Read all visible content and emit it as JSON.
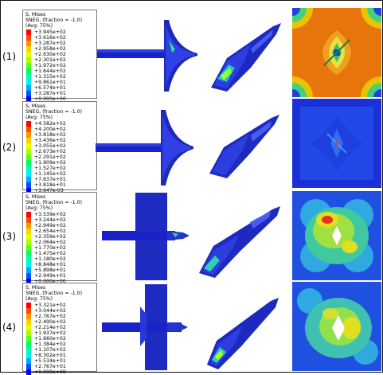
{
  "legend_header": [
    "S, Mises",
    "SNEG, (fraction = -1.0)",
    "(Avg: 75%)"
  ],
  "legend_colors": [
    "#ff0000",
    "#ff4a00",
    "#ff9400",
    "#ffd200",
    "#e6ff00",
    "#a8ff00",
    "#55ff1a",
    "#00ff5e",
    "#00ffb0",
    "#00f0ff",
    "#00a6ff",
    "#0050ff",
    "#0000ff"
  ],
  "rows": [
    {
      "label": "(1)",
      "values": [
        "+3.945e+02",
        "+3.616e+02",
        "+3.287e+02",
        "+2.958e+02",
        "+2.630e+02",
        "+2.301e+02",
        "+1.972e+02",
        "+1.644e+02",
        "+1.315e+02",
        "+9.861e+01",
        "+6.574e+01",
        "+3.287e+01",
        "+0.000e+00"
      ]
    },
    {
      "label": "(2)",
      "values": [
        "+4.582e+02",
        "+4.200e+02",
        "+3.818e+02",
        "+3.436e+02",
        "+3.055e+02",
        "+2.673e+02",
        "+2.291e+02",
        "+1.909e+02",
        "+1.527e+02",
        "+1.145e+02",
        "+7.637e+01",
        "+3.818e+01",
        "+3.647e-03"
      ]
    },
    {
      "label": "(3)",
      "values": [
        "+3.539e+02",
        "+3.244e+02",
        "+2.949e+02",
        "+2.654e+02",
        "+2.359e+02",
        "+2.064e+02",
        "+1.770e+02",
        "+1.475e+02",
        "+1.180e+02",
        "+8.848e+01",
        "+5.898e+01",
        "+2.949e+01",
        "+0.000e+00"
      ]
    },
    {
      "label": "(4)",
      "values": [
        "+3.321e+02",
        "+3.044e+02",
        "+2.767e+02",
        "+2.490e+02",
        "+2.214e+02",
        "+1.937e+02",
        "+1.660e+02",
        "+1.384e+02",
        "+1.107e+02",
        "+8.302e+01",
        "+5.534e+01",
        "+2.767e+01",
        "+0.000e+00"
      ]
    }
  ]
}
